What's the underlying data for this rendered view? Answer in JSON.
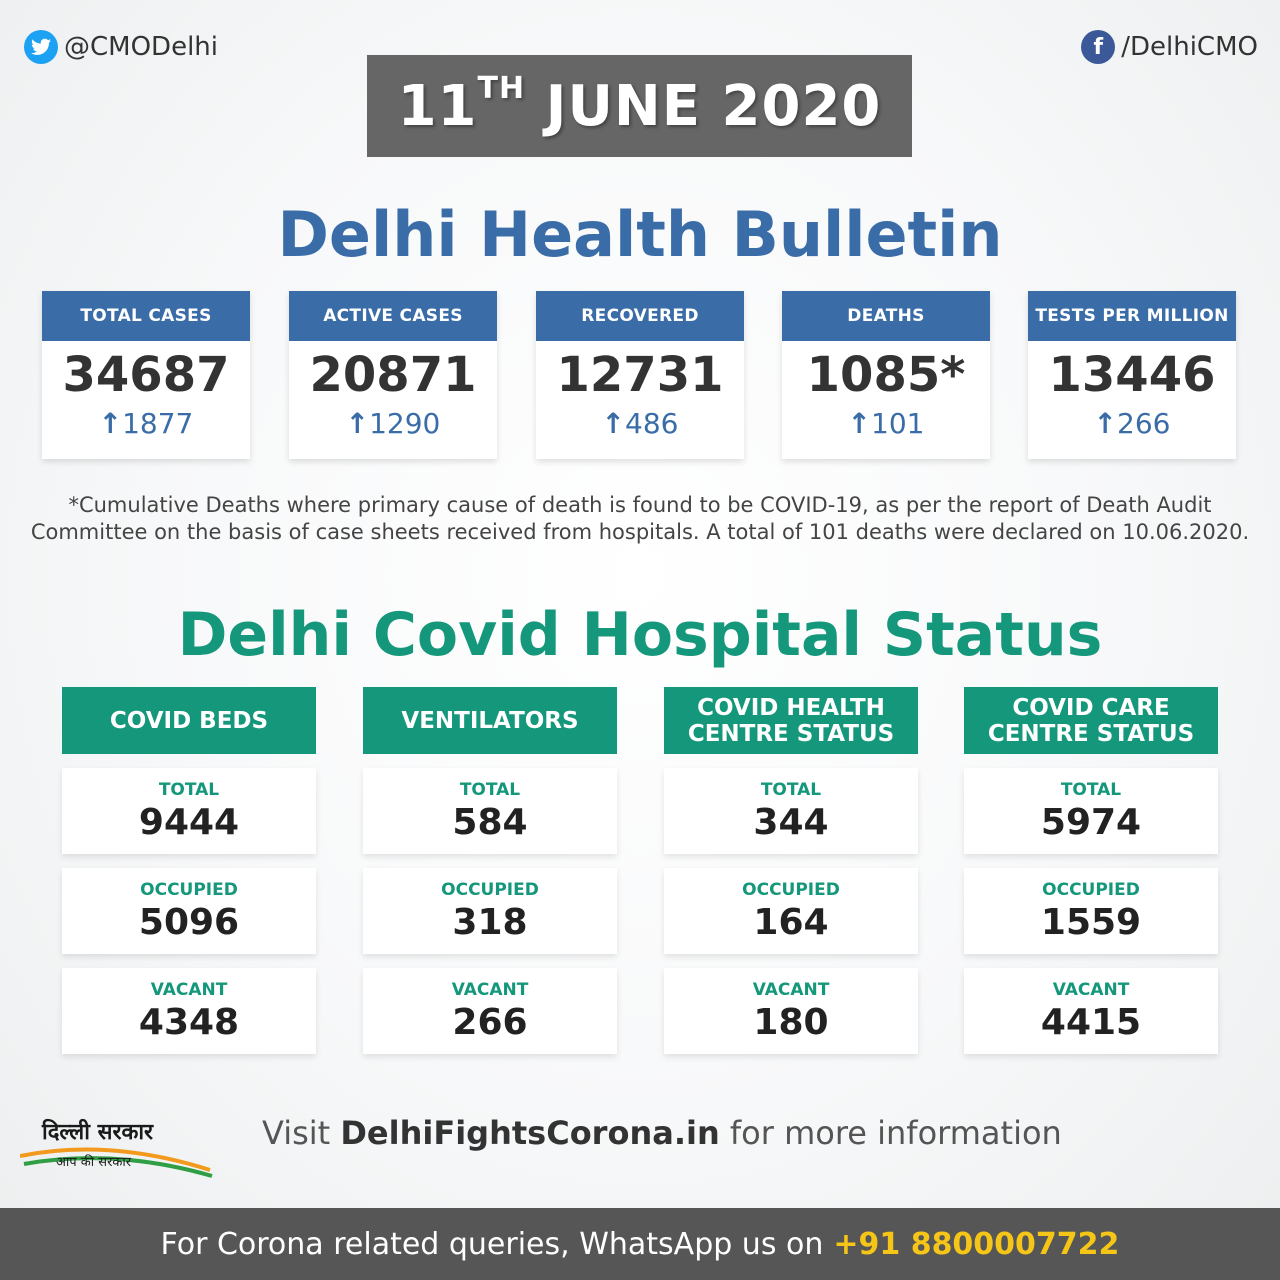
{
  "social": {
    "twitter": "@CMODelhi",
    "facebook": "/DelhiCMO"
  },
  "date": {
    "day": "11",
    "suffix": "TH",
    "rest": "JUNE 2020"
  },
  "bulletin_title": "Delhi Health Bulletin",
  "stats": [
    {
      "label": "TOTAL CASES",
      "value": "34687",
      "delta": "1877"
    },
    {
      "label": "ACTIVE CASES",
      "value": "20871",
      "delta": "1290"
    },
    {
      "label": "RECOVERED",
      "value": "12731",
      "delta": "486"
    },
    {
      "label": "DEATHS",
      "value": "1085*",
      "delta": "101"
    },
    {
      "label": "TESTS PER MILLION",
      "value": "13446",
      "delta": "266"
    }
  ],
  "footnote_line1": "*Cumulative Deaths where primary cause of death is found to be COVID-19, as per  the report of Death Audit",
  "footnote_line2": "Committee on the basis of case sheets received from hospitals. A total of 101 deaths were declared on 10.06.2020.",
  "hospital_title": "Delhi Covid Hospital Status",
  "hospital": [
    {
      "line1": "COVID BEDS",
      "line2": "",
      "total": "9444",
      "occupied": "5096",
      "vacant": "4348"
    },
    {
      "line1": "VENTILATORS",
      "line2": "",
      "total": "584",
      "occupied": "318",
      "vacant": "266"
    },
    {
      "line1": "COVID HEALTH",
      "line2": "CENTRE STATUS",
      "total": "344",
      "occupied": "164",
      "vacant": "180"
    },
    {
      "line1": "COVID CARE",
      "line2": "CENTRE STATUS",
      "total": "5974",
      "occupied": "1559",
      "vacant": "4415"
    }
  ],
  "cell_labels": {
    "total": "TOTAL",
    "occupied": "OCCUPIED",
    "vacant": "VACANT"
  },
  "logo": {
    "main": "दिल्ली सरकार",
    "sub": "आप की सरकार"
  },
  "visit": {
    "pre": "Visit ",
    "site": "DelhiFightsCorona.in",
    "post": " for more information"
  },
  "bottom": {
    "text": "For Corona related queries, WhatsApp us on",
    "phone": "+91 8800007722"
  },
  "colors": {
    "blue": "#3a6da8",
    "green": "#14977a",
    "gray": "#666666",
    "yellow": "#f5c518"
  }
}
